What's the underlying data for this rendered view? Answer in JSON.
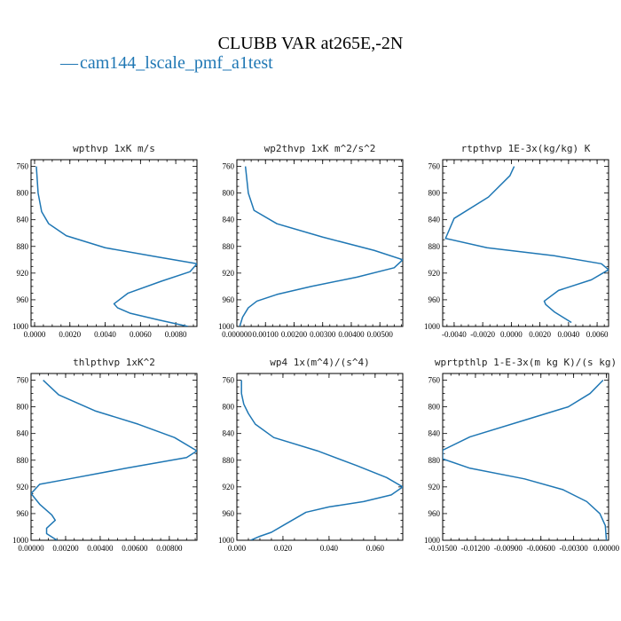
{
  "figure": {
    "title": "CLUBB VAR at265E,-2N",
    "legend": [
      {
        "label": "cam144_lscale_pmf_a1test",
        "color": "#1f77b4"
      }
    ]
  },
  "chart_data": [
    {
      "type": "line",
      "title": "wpthvp   1xK m/s",
      "series_color": "#1f77b4",
      "xlim": [
        -0.0002,
        0.0092
      ],
      "ylim": [
        1000,
        750
      ],
      "xticks": [
        "0.0000",
        "0.0020",
        "0.0040",
        "0.0060",
        "0.0080"
      ],
      "xtick_values": [
        0,
        0.002,
        0.004,
        0.006,
        0.008
      ],
      "yticks": [
        "760",
        "800",
        "840",
        "880",
        "920",
        "960",
        "1000"
      ],
      "ytick_values": [
        760,
        800,
        840,
        880,
        920,
        960,
        1000
      ],
      "series": [
        {
          "x": [
            0.0001,
            0.00015,
            0.0002,
            0.0004,
            0.0008,
            0.0018,
            0.004,
            0.007,
            0.0092,
            0.0088,
            0.0072,
            0.0053,
            0.0045,
            0.0047,
            0.0054,
            0.007,
            0.0087
          ],
          "y": [
            760,
            780,
            800,
            828,
            846,
            864,
            882,
            896,
            906,
            918,
            932,
            950,
            966,
            972,
            980,
            990,
            1000
          ]
        }
      ]
    },
    {
      "type": "line",
      "title": "wp2thvp   1xK m^2/s^2",
      "series_color": "#1f77b4",
      "xlim": [
        0,
        0.0058
      ],
      "ylim": [
        1000,
        750
      ],
      "xticks": [
        "0.000000",
        "0.00100",
        "0.00200",
        "0.00300",
        "0.00400",
        "0.00500"
      ],
      "xtick_values": [
        0,
        0.001,
        0.002,
        0.003,
        0.004,
        0.005
      ],
      "yticks": [
        "760",
        "800",
        "840",
        "880",
        "920",
        "960",
        "1000"
      ],
      "ytick_values": [
        760,
        800,
        840,
        880,
        920,
        960,
        1000
      ],
      "series": [
        {
          "x": [
            0.0003,
            0.00035,
            0.0004,
            0.0006,
            0.0014,
            0.003,
            0.0048,
            0.0058,
            0.0055,
            0.0042,
            0.0026,
            0.0014,
            0.0007,
            0.0004,
            0.0002,
            0.0001
          ],
          "y": [
            760,
            780,
            800,
            826,
            846,
            866,
            886,
            900,
            912,
            926,
            940,
            952,
            962,
            972,
            986,
            1000
          ]
        }
      ]
    },
    {
      "type": "line",
      "title": "rtpthvp   1E-3x(kg/kg) K",
      "series_color": "#1f77b4",
      "xlim": [
        -0.0048,
        0.0068
      ],
      "ylim": [
        1000,
        750
      ],
      "xticks": [
        "-0.0040",
        "-0.0020",
        "0.0000",
        "0.0020",
        "0.0040",
        "0.0060"
      ],
      "xtick_values": [
        -0.004,
        -0.002,
        0,
        0.002,
        0.004,
        0.006
      ],
      "yticks": [
        "760",
        "800",
        "840",
        "880",
        "920",
        "960",
        "1000"
      ],
      "ytick_values": [
        760,
        800,
        840,
        880,
        920,
        960,
        1000
      ],
      "series": [
        {
          "x": [
            0.0002,
            -0.0001,
            -0.0016,
            -0.004,
            -0.0046,
            -0.0017,
            0.003,
            0.0063,
            0.0068,
            0.0056,
            0.0033,
            0.0023,
            0.0024,
            0.003,
            0.0042
          ],
          "y": [
            760,
            774,
            806,
            838,
            868,
            882,
            894,
            906,
            915,
            930,
            946,
            962,
            967,
            978,
            994
          ]
        }
      ]
    },
    {
      "type": "line",
      "title": "thlpthvp   1xK^2",
      "series_color": "#1f77b4",
      "xlim": [
        0,
        0.0096
      ],
      "ylim": [
        1000,
        750
      ],
      "xticks": [
        "0.00000",
        "0.00200",
        "0.00400",
        "0.00600",
        "0.00800"
      ],
      "xtick_values": [
        0,
        0.002,
        0.004,
        0.006,
        0.008
      ],
      "yticks": [
        "760",
        "800",
        "840",
        "880",
        "920",
        "960",
        "1000"
      ],
      "ytick_values": [
        760,
        800,
        840,
        880,
        920,
        960,
        1000
      ],
      "series": [
        {
          "x": [
            0.0007,
            0.0016,
            0.0037,
            0.0062,
            0.0083,
            0.0096,
            0.009,
            0.0055,
            0.0022,
            0.0005,
            0.0,
            0.0005,
            0.0012,
            0.0014,
            0.0009,
            0.0009,
            0.0015
          ],
          "y": [
            760,
            782,
            806,
            826,
            846,
            866,
            876,
            892,
            908,
            916,
            930,
            946,
            962,
            970,
            982,
            990,
            1000
          ]
        }
      ]
    },
    {
      "type": "line",
      "title": "wp4   1x(m^4)/(s^4)",
      "series_color": "#1f77b4",
      "xlim": [
        0,
        0.072
      ],
      "ylim": [
        1000,
        750
      ],
      "xticks": [
        "0.000",
        "0.020",
        "0.040",
        "0.060"
      ],
      "xtick_values": [
        0,
        0.02,
        0.04,
        0.06
      ],
      "yticks": [
        "760",
        "800",
        "840",
        "880",
        "920",
        "960",
        "1000"
      ],
      "ytick_values": [
        760,
        800,
        840,
        880,
        920,
        960,
        1000
      ],
      "series": [
        {
          "x": [
            0.002,
            0.002,
            0.003,
            0.005,
            0.008,
            0.016,
            0.035,
            0.052,
            0.065,
            0.072,
            0.067,
            0.055,
            0.04,
            0.03,
            0.025,
            0.02,
            0.015,
            0.01,
            0.006
          ],
          "y": [
            760,
            780,
            796,
            810,
            826,
            846,
            866,
            888,
            906,
            920,
            932,
            942,
            950,
            958,
            968,
            978,
            988,
            994,
            1000
          ]
        }
      ]
    },
    {
      "type": "line",
      "title": "wprtpthlp   1-E-3x(m kg K)/(s kg)",
      "series_color": "#1f77b4",
      "xlim": [
        -0.015,
        0.0002
      ],
      "ylim": [
        1000,
        750
      ],
      "xticks": [
        "-0.01500",
        "-0.01200",
        "-0.00900",
        "-0.00600",
        "-0.00300",
        "0.00000"
      ],
      "xtick_values": [
        -0.015,
        -0.012,
        -0.009,
        -0.006,
        -0.003,
        0
      ],
      "yticks": [
        "760",
        "800",
        "840",
        "880",
        "920",
        "960",
        "1000"
      ],
      "ytick_values": [
        760,
        800,
        840,
        880,
        920,
        960,
        1000
      ],
      "series": [
        {
          "x": [
            -0.0003,
            -0.0015,
            -0.0035,
            -0.0075,
            -0.0125,
            -0.015,
            -0.015,
            -0.0125,
            -0.0075,
            -0.004,
            -0.0018,
            -0.0006,
            -0.0001,
            0.0
          ],
          "y": [
            760,
            780,
            800,
            820,
            845,
            865,
            878,
            892,
            908,
            924,
            942,
            960,
            978,
            1000
          ]
        }
      ]
    }
  ]
}
